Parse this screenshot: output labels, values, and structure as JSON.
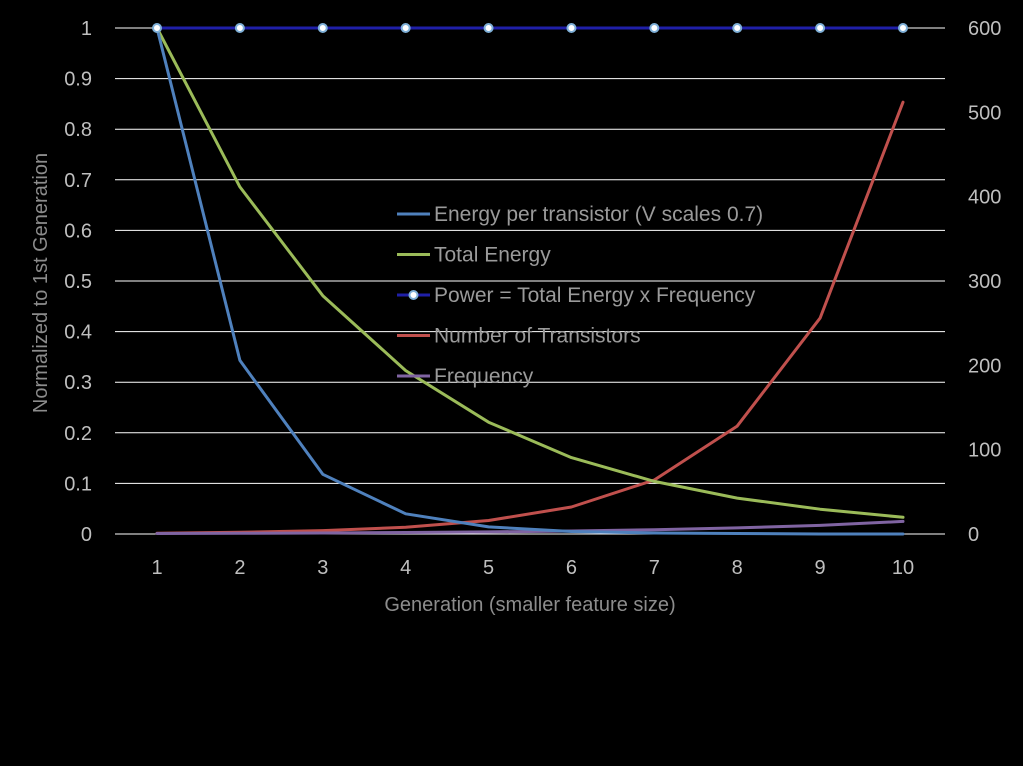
{
  "chart_data": {
    "type": "line",
    "title": "",
    "xlabel": "Generation (smaller feature size)",
    "ylabel": "Normalized to 1st Generation",
    "x": [
      1,
      2,
      3,
      4,
      5,
      6,
      7,
      8,
      9,
      10
    ],
    "ylim": [
      0,
      1
    ],
    "y2lim": [
      0,
      600
    ],
    "y_ticks": [
      "0",
      "0.1",
      "0.2",
      "0.3",
      "0.4",
      "0.5",
      "0.6",
      "0.7",
      "0.8",
      "0.9",
      "1"
    ],
    "y2_ticks": [
      "0",
      "100",
      "200",
      "300",
      "400",
      "500",
      "600"
    ],
    "x_ticks": [
      "1",
      "2",
      "3",
      "4",
      "5",
      "6",
      "7",
      "8",
      "9",
      "10"
    ],
    "grid": true,
    "legend_position": "center",
    "series": [
      {
        "name": "Energy per transistor (V scales 0.7)",
        "color": "#4f81bd",
        "axis": "left",
        "marker": "none",
        "values": [
          1,
          0.343,
          0.118,
          0.04,
          0.014,
          0.005,
          0.002,
          0.001,
          0.0,
          0.0
        ]
      },
      {
        "name": "Total Energy",
        "color": "#9bbb59",
        "axis": "left",
        "marker": "none",
        "values": [
          1,
          0.686,
          0.471,
          0.323,
          0.221,
          0.151,
          0.104,
          0.071,
          0.049,
          0.033
        ]
      },
      {
        "name": "Power = Total Energy x Frequency",
        "color": "#1f1fa8",
        "axis": "left",
        "marker": "circle",
        "values": [
          1,
          1,
          1,
          1,
          1,
          1,
          1,
          1,
          1,
          1
        ]
      },
      {
        "name": "Number of Transistors",
        "color": "#c0504d",
        "axis": "right",
        "marker": "none",
        "values": [
          1,
          2,
          4,
          8,
          16,
          32,
          64,
          128,
          256,
          512
        ]
      },
      {
        "name": "Frequency",
        "color": "#8064a2",
        "axis": "left",
        "marker": "none",
        "values": [
          0.001,
          0.0014,
          0.002,
          0.0029,
          0.0041,
          0.0059,
          0.0084,
          0.012,
          0.017,
          0.025
        ]
      }
    ]
  }
}
